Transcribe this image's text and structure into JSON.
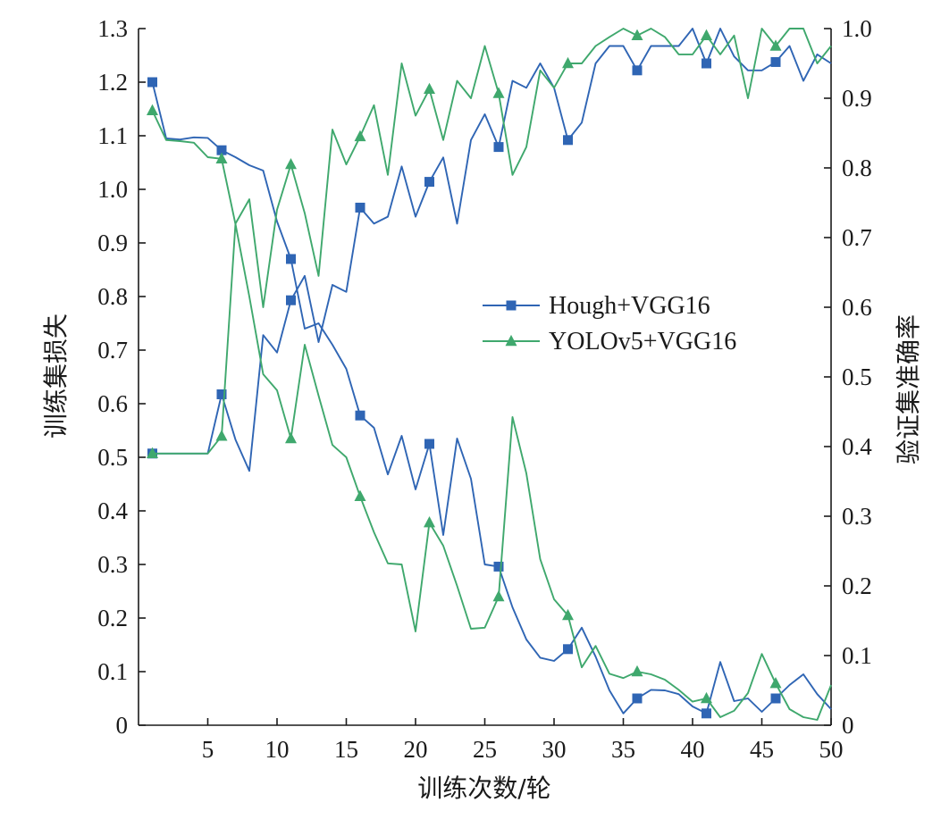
{
  "chart_data": {
    "type": "line",
    "xlabel": "训练次数/轮",
    "ylabel_left": "训练集损失",
    "ylabel_right": "验证集准确率",
    "xlim": [
      0,
      50
    ],
    "ylim_left": [
      0,
      1.3
    ],
    "ylim_right": [
      0,
      1.0
    ],
    "x_ticks": [
      5,
      10,
      15,
      20,
      25,
      30,
      35,
      40,
      45,
      50
    ],
    "y_left_ticks": [
      "0",
      "0.1",
      "0.2",
      "0.3",
      "0.4",
      "0.5",
      "0.6",
      "0.7",
      "0.8",
      "0.9",
      "1.0",
      "1.1",
      "1.2",
      "1.3"
    ],
    "y_right_ticks": [
      "0",
      "0.1",
      "0.2",
      "0.3",
      "0.4",
      "0.5",
      "0.6",
      "0.7",
      "0.8",
      "0.9",
      "1.0"
    ],
    "grid": false,
    "legend_position": "center-right",
    "series": [
      {
        "name": "Hough+VGG16",
        "color": "#2f65b4",
        "marker": "square",
        "marker_every": 5,
        "marker_start": 1,
        "x": [
          1,
          2,
          3,
          4,
          5,
          6,
          7,
          8,
          9,
          10,
          11,
          12,
          13,
          14,
          15,
          16,
          17,
          18,
          19,
          20,
          21,
          22,
          23,
          24,
          25,
          26,
          27,
          28,
          29,
          30,
          31,
          32,
          33,
          34,
          35,
          36,
          37,
          38,
          39,
          40,
          41,
          42,
          43,
          44,
          45,
          46,
          47,
          48,
          49,
          50
        ],
        "loss": [
          1.2,
          1.095,
          1.093,
          1.097,
          1.096,
          1.073,
          1.06,
          1.045,
          1.035,
          0.94,
          0.87,
          0.74,
          0.75,
          0.71,
          0.665,
          0.578,
          0.555,
          0.468,
          0.54,
          0.44,
          0.525,
          0.355,
          0.535,
          0.46,
          0.3,
          0.296,
          0.22,
          0.16,
          0.126,
          0.12,
          0.142,
          0.182,
          0.128,
          0.065,
          0.022,
          0.05,
          0.066,
          0.065,
          0.058,
          0.035,
          0.022,
          0.118,
          0.045,
          0.05,
          0.025,
          0.05,
          0.075,
          0.095,
          0.058,
          0.03
        ],
        "accuracy": [
          0.39,
          0.39,
          0.39,
          0.39,
          0.39,
          0.475,
          0.41,
          0.365,
          0.56,
          0.535,
          0.61,
          0.645,
          0.55,
          0.632,
          0.622,
          0.743,
          0.72,
          0.73,
          0.802,
          0.73,
          0.78,
          0.815,
          0.72,
          0.84,
          0.877,
          0.83,
          0.925,
          0.915,
          0.95,
          0.915,
          0.84,
          0.865,
          0.95,
          0.975,
          0.975,
          0.94,
          0.975,
          0.975,
          0.975,
          1.0,
          0.95,
          1.0,
          0.96,
          0.94,
          0.94,
          0.952,
          0.975,
          0.925,
          0.963,
          0.95
        ]
      },
      {
        "name": "YOLOv5+VGG16",
        "color": "#3fa86d",
        "marker": "triangle",
        "marker_every": 5,
        "marker_start": 1,
        "x": [
          1,
          2,
          3,
          4,
          5,
          6,
          7,
          8,
          9,
          10,
          11,
          12,
          13,
          14,
          15,
          16,
          17,
          18,
          19,
          20,
          21,
          22,
          23,
          24,
          25,
          26,
          27,
          28,
          29,
          30,
          31,
          32,
          33,
          34,
          35,
          36,
          37,
          38,
          39,
          40,
          41,
          42,
          43,
          44,
          45,
          46,
          47,
          48,
          49,
          50
        ],
        "loss": [
          1.147,
          1.092,
          1.09,
          1.087,
          1.06,
          1.057,
          0.935,
          0.8,
          0.655,
          0.625,
          0.535,
          0.71,
          0.615,
          0.523,
          0.5,
          0.427,
          0.36,
          0.302,
          0.3,
          0.175,
          0.378,
          0.335,
          0.26,
          0.18,
          0.182,
          0.24,
          0.575,
          0.47,
          0.31,
          0.235,
          0.205,
          0.108,
          0.148,
          0.096,
          0.088,
          0.1,
          0.095,
          0.085,
          0.066,
          0.044,
          0.05,
          0.015,
          0.027,
          0.06,
          0.133,
          0.078,
          0.03,
          0.015,
          0.01,
          0.075
        ],
        "accuracy": [
          0.39,
          0.39,
          0.39,
          0.39,
          0.39,
          0.415,
          0.72,
          0.755,
          0.6,
          0.74,
          0.805,
          0.735,
          0.645,
          0.855,
          0.805,
          0.845,
          0.89,
          0.79,
          0.95,
          0.875,
          0.913,
          0.84,
          0.925,
          0.9,
          0.975,
          0.907,
          0.79,
          0.83,
          0.94,
          0.915,
          0.95,
          0.95,
          0.975,
          0.988,
          1.0,
          0.99,
          1.0,
          0.988,
          0.963,
          0.963,
          0.99,
          0.963,
          0.99,
          0.9,
          1.0,
          0.975,
          1.0,
          1.0,
          0.95,
          0.975
        ]
      }
    ]
  }
}
